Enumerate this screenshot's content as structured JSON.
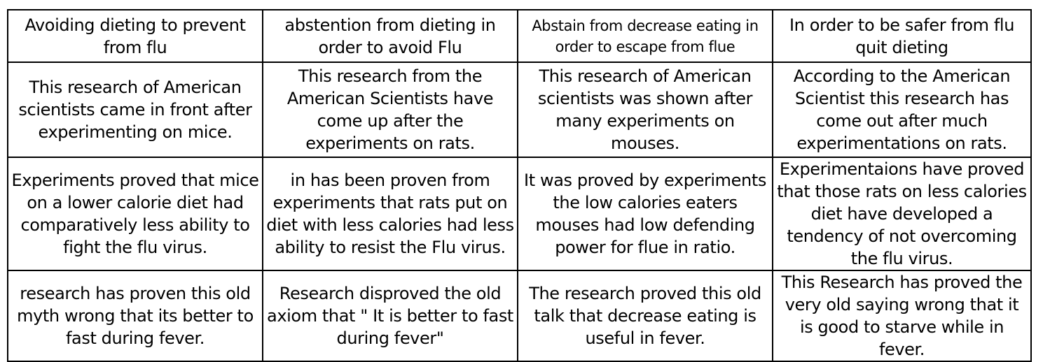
{
  "rows": [
    [
      "Avoiding dieting to prevent from flu",
      "abstention from dieting in order to avoid Flu",
      "Abstain from decrease eating in order to escape from flue",
      "In order to be safer from flu quit dieting"
    ],
    [
      "This research of American scientists came in front after experimenting on mice.",
      "This research from the American Scientists have come up after the experiments on rats.",
      "This research of American scientists was shown after many experiments on mouses.",
      "According to the American Scientist this research has come out after much experimentations on rats."
    ],
    [
      "Experiments proved that mice on a lower calorie diet had comparatively less ability to fight the flu virus.",
      "in has been proven from experiments that rats put on diet with less calories had less ability to resist the Flu virus.",
      "It was proved by experiments the low calories eaters mouses had low defending power for flue in ratio.",
      "Experimentaions have proved that those rats on less calories diet have developed a tendency of not overcoming the flu virus."
    ],
    [
      "research has proven this old myth wrong that its better to fast during fever.",
      "Research disproved the old axiom that \" It is better to fast during fever\"",
      "The research proved this old talk that decrease eating is useful in fever.",
      "This Research has proved the very old saying wrong that it is good to starve while in fever."
    ]
  ]
}
